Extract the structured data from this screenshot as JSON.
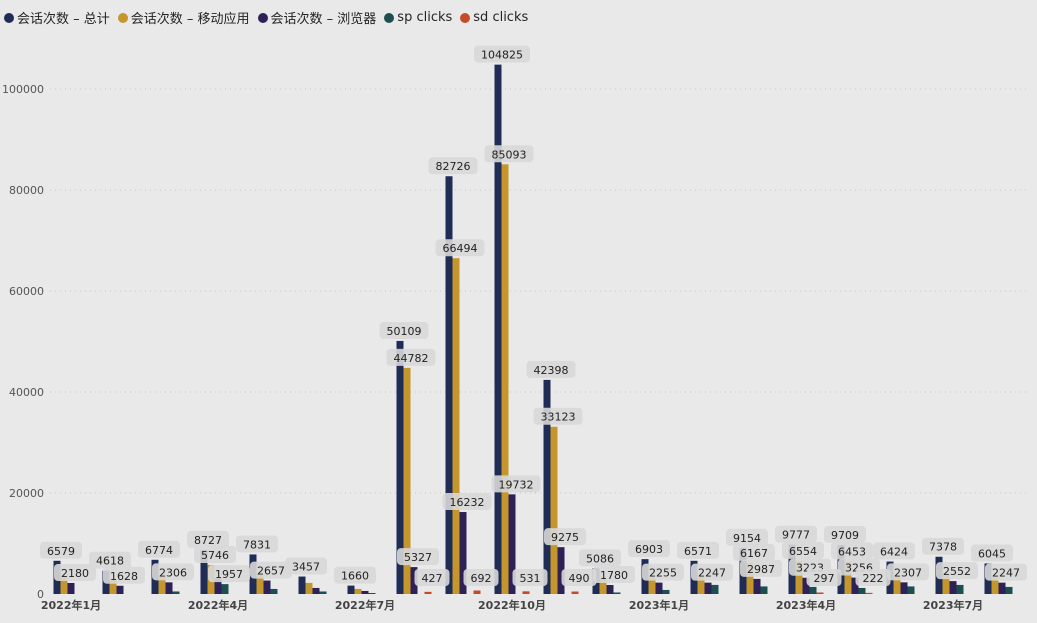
{
  "chart_data": {
    "type": "bar",
    "categories": [
      "2022-01",
      "2022-02",
      "2022-03",
      "2022-04",
      "2022-05",
      "2022-06",
      "2022-07",
      "2022-08",
      "2022-09",
      "2022-10",
      "2022-11",
      "2022-12",
      "2023-01",
      "2023-02",
      "2023-03",
      "2023-04",
      "2023-05",
      "2023-06",
      "2023-07",
      "2023-08"
    ],
    "x_tick_labels": [
      {
        "index": 0,
        "label": "2022年1月"
      },
      {
        "index": 3,
        "label": "2022年4月"
      },
      {
        "index": 6,
        "label": "2022年7月"
      },
      {
        "index": 9,
        "label": "2022年10月"
      },
      {
        "index": 12,
        "label": "2023年1月"
      },
      {
        "index": 15,
        "label": "2023年4月"
      },
      {
        "index": 18,
        "label": "2023年7月"
      }
    ],
    "y_ticks": [
      0,
      20000,
      40000,
      60000,
      80000,
      100000
    ],
    "ylim": [
      0,
      110000
    ],
    "grid": true,
    "legend_position": "top-left",
    "series": [
      {
        "name": "会话次数 – 总计",
        "color": "#1f2d56",
        "values": [
          6579,
          4618,
          6774,
          8727,
          7831,
          3457,
          1660,
          50109,
          82726,
          104825,
          42398,
          5086,
          6903,
          6571,
          9154,
          9777,
          9709,
          6424,
          7378,
          6045
        ]
      },
      {
        "name": "会话次数 – 移动应用",
        "color": "#c4962b",
        "values": [
          3600,
          3000,
          3600,
          5746,
          4000,
          2200,
          1000,
          44782,
          66494,
          85093,
          33123,
          3300,
          3500,
          3500,
          6167,
          6554,
          6453,
          3600,
          4200,
          3600
        ]
      },
      {
        "name": "会话次数 – 浏览器",
        "color": "#2e2158",
        "values": [
          2180,
          1628,
          2306,
          3100,
          2657,
          1200,
          600,
          5327,
          16232,
          19732,
          9275,
          1780,
          2255,
          2247,
          2987,
          3223,
          3256,
          2307,
          2552,
          2247
        ]
      },
      {
        "name": "sp clicks",
        "color": "#1c4f4f",
        "values": [
          0,
          0,
          500,
          1957,
          1000,
          500,
          200,
          0,
          0,
          0,
          0,
          300,
          800,
          1800,
          1500,
          1400,
          1200,
          1500,
          1800,
          1400
        ]
      },
      {
        "name": "sd clicks",
        "color": "#c44b2a",
        "values": [
          0,
          0,
          0,
          0,
          0,
          0,
          0,
          427,
          692,
          531,
          490,
          0,
          0,
          0,
          0,
          297,
          222,
          0,
          0,
          0
        ]
      }
    ],
    "data_labels": [
      {
        "series": 0,
        "index": 0,
        "text": "6579"
      },
      {
        "series": 2,
        "index": 0,
        "text": "2180"
      },
      {
        "series": 0,
        "index": 1,
        "text": "4618"
      },
      {
        "series": 2,
        "index": 1,
        "text": "1628"
      },
      {
        "series": 0,
        "index": 2,
        "text": "6774"
      },
      {
        "series": 2,
        "index": 2,
        "text": "2306"
      },
      {
        "series": 0,
        "index": 3,
        "text": "8727"
      },
      {
        "series": 1,
        "index": 3,
        "text": "5746"
      },
      {
        "series": 3,
        "index": 3,
        "text": "1957"
      },
      {
        "series": 0,
        "index": 4,
        "text": "7831"
      },
      {
        "series": 2,
        "index": 4,
        "text": "2657"
      },
      {
        "series": 0,
        "index": 5,
        "text": "3457"
      },
      {
        "series": 0,
        "index": 6,
        "text": "1660"
      },
      {
        "series": 0,
        "index": 7,
        "text": "50109"
      },
      {
        "series": 1,
        "index": 7,
        "text": "44782"
      },
      {
        "series": 2,
        "index": 7,
        "text": "5327"
      },
      {
        "series": 4,
        "index": 7,
        "text": "427"
      },
      {
        "series": 0,
        "index": 8,
        "text": "82726"
      },
      {
        "series": 1,
        "index": 8,
        "text": "66494"
      },
      {
        "series": 2,
        "index": 8,
        "text": "16232"
      },
      {
        "series": 4,
        "index": 8,
        "text": "692"
      },
      {
        "series": 0,
        "index": 9,
        "text": "104825"
      },
      {
        "series": 1,
        "index": 9,
        "text": "85093"
      },
      {
        "series": 2,
        "index": 9,
        "text": "19732"
      },
      {
        "series": 4,
        "index": 9,
        "text": "531"
      },
      {
        "series": 0,
        "index": 10,
        "text": "42398"
      },
      {
        "series": 1,
        "index": 10,
        "text": "33123"
      },
      {
        "series": 2,
        "index": 10,
        "text": "9275"
      },
      {
        "series": 4,
        "index": 10,
        "text": "490"
      },
      {
        "series": 0,
        "index": 11,
        "text": "5086"
      },
      {
        "series": 2,
        "index": 11,
        "text": "1780"
      },
      {
        "series": 0,
        "index": 12,
        "text": "6903"
      },
      {
        "series": 2,
        "index": 12,
        "text": "2255"
      },
      {
        "series": 0,
        "index": 13,
        "text": "6571"
      },
      {
        "series": 2,
        "index": 13,
        "text": "2247"
      },
      {
        "series": 0,
        "index": 14,
        "text": "9154"
      },
      {
        "series": 1,
        "index": 14,
        "text": "6167"
      },
      {
        "series": 2,
        "index": 14,
        "text": "2987"
      },
      {
        "series": 0,
        "index": 15,
        "text": "9777"
      },
      {
        "series": 1,
        "index": 15,
        "text": "6554"
      },
      {
        "series": 2,
        "index": 15,
        "text": "3223"
      },
      {
        "series": 4,
        "index": 15,
        "text": "297"
      },
      {
        "series": 0,
        "index": 16,
        "text": "9709"
      },
      {
        "series": 1,
        "index": 16,
        "text": "6453"
      },
      {
        "series": 2,
        "index": 16,
        "text": "3256"
      },
      {
        "series": 4,
        "index": 16,
        "text": "222"
      },
      {
        "series": 0,
        "index": 17,
        "text": "6424"
      },
      {
        "series": 2,
        "index": 17,
        "text": "2307"
      },
      {
        "series": 0,
        "index": 18,
        "text": "7378"
      },
      {
        "series": 2,
        "index": 18,
        "text": "2552"
      },
      {
        "series": 0,
        "index": 19,
        "text": "6045"
      },
      {
        "series": 2,
        "index": 19,
        "text": "2247"
      }
    ]
  }
}
